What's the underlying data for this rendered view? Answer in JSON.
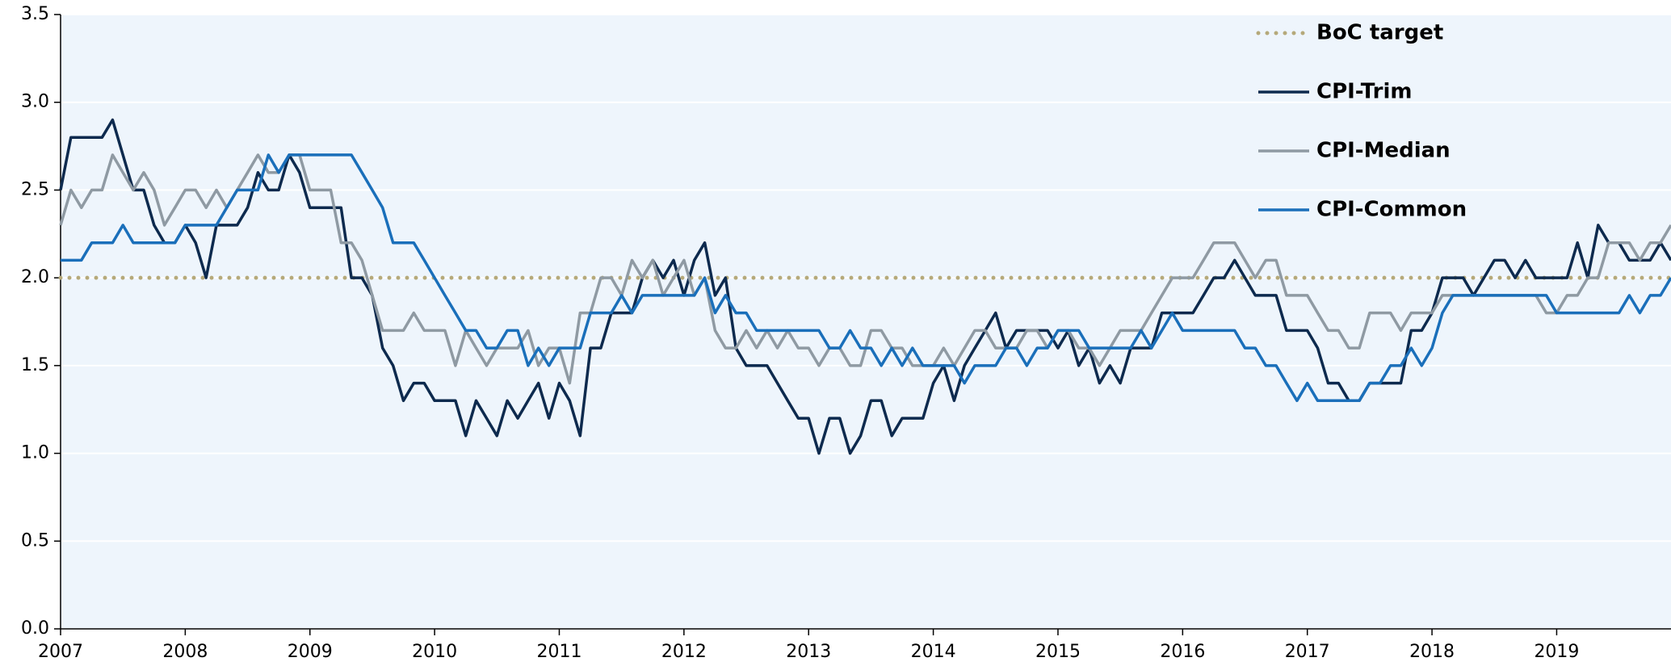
{
  "chart_data": {
    "type": "line",
    "x": [
      2007,
      2007.083,
      2007.167,
      2007.25,
      2007.333,
      2007.417,
      2007.5,
      2007.583,
      2007.667,
      2007.75,
      2007.833,
      2007.917,
      2008,
      2008.083,
      2008.167,
      2008.25,
      2008.333,
      2008.417,
      2008.5,
      2008.583,
      2008.667,
      2008.75,
      2008.833,
      2008.917,
      2009,
      2009.083,
      2009.167,
      2009.25,
      2009.333,
      2009.417,
      2009.5,
      2009.583,
      2009.667,
      2009.75,
      2009.833,
      2009.917,
      2010,
      2010.083,
      2010.167,
      2010.25,
      2010.333,
      2010.417,
      2010.5,
      2010.583,
      2010.667,
      2010.75,
      2010.833,
      2010.917,
      2011,
      2011.083,
      2011.167,
      2011.25,
      2011.333,
      2011.417,
      2011.5,
      2011.583,
      2011.667,
      2011.75,
      2011.833,
      2011.917,
      2012,
      2012.083,
      2012.167,
      2012.25,
      2012.333,
      2012.417,
      2012.5,
      2012.583,
      2012.667,
      2012.75,
      2012.833,
      2012.917,
      2013,
      2013.083,
      2013.167,
      2013.25,
      2013.333,
      2013.417,
      2013.5,
      2013.583,
      2013.667,
      2013.75,
      2013.833,
      2013.917,
      2014,
      2014.083,
      2014.167,
      2014.25,
      2014.333,
      2014.417,
      2014.5,
      2014.583,
      2014.667,
      2014.75,
      2014.833,
      2014.917,
      2015,
      2015.083,
      2015.167,
      2015.25,
      2015.333,
      2015.417,
      2015.5,
      2015.583,
      2015.667,
      2015.75,
      2015.833,
      2015.917,
      2016,
      2016.083,
      2016.167,
      2016.25,
      2016.333,
      2016.417,
      2016.5,
      2016.583,
      2016.667,
      2016.75,
      2016.833,
      2016.917,
      2017,
      2017.083,
      2017.167,
      2017.25,
      2017.333,
      2017.417,
      2017.5,
      2017.583,
      2017.667,
      2017.75,
      2017.833,
      2017.917,
      2018,
      2018.083,
      2018.167,
      2018.25,
      2018.333,
      2018.417,
      2018.5,
      2018.583,
      2018.667,
      2018.75,
      2018.833,
      2018.917,
      2019,
      2019.083,
      2019.167,
      2019.25,
      2019.333,
      2019.417,
      2019.5,
      2019.583,
      2019.667,
      2019.75,
      2019.833,
      2019.917
    ],
    "series": [
      {
        "name": "CPI-Trim",
        "color": "#0d2a4e",
        "values": [
          2.5,
          2.8,
          2.8,
          2.8,
          2.8,
          2.9,
          2.7,
          2.5,
          2.5,
          2.3,
          2.2,
          2.2,
          2.3,
          2.2,
          2.0,
          2.3,
          2.3,
          2.3,
          2.4,
          2.6,
          2.5,
          2.5,
          2.7,
          2.6,
          2.4,
          2.4,
          2.4,
          2.4,
          2.0,
          2.0,
          1.9,
          1.6,
          1.5,
          1.3,
          1.4,
          1.4,
          1.3,
          1.3,
          1.3,
          1.1,
          1.3,
          1.2,
          1.1,
          1.3,
          1.2,
          1.3,
          1.4,
          1.2,
          1.4,
          1.3,
          1.1,
          1.6,
          1.6,
          1.8,
          1.8,
          1.8,
          2.0,
          2.1,
          2.0,
          2.1,
          1.9,
          2.1,
          2.2,
          1.9,
          2.0,
          1.6,
          1.5,
          1.5,
          1.5,
          1.4,
          1.3,
          1.2,
          1.2,
          1.0,
          1.2,
          1.2,
          1.0,
          1.1,
          1.3,
          1.3,
          1.1,
          1.2,
          1.2,
          1.2,
          1.4,
          1.5,
          1.3,
          1.5,
          1.6,
          1.7,
          1.8,
          1.6,
          1.7,
          1.7,
          1.7,
          1.7,
          1.6,
          1.7,
          1.5,
          1.6,
          1.4,
          1.5,
          1.4,
          1.6,
          1.6,
          1.6,
          1.8,
          1.8,
          1.8,
          1.8,
          1.9,
          2.0,
          2.0,
          2.1,
          2.0,
          1.9,
          1.9,
          1.9,
          1.7,
          1.7,
          1.7,
          1.6,
          1.4,
          1.4,
          1.3,
          1.3,
          1.4,
          1.4,
          1.4,
          1.4,
          1.7,
          1.7,
          1.8,
          2.0,
          2.0,
          2.0,
          1.9,
          2.0,
          2.1,
          2.1,
          2.0,
          2.1,
          2.0,
          2.0,
          2.0,
          2.0,
          2.2,
          2.0,
          2.3,
          2.2,
          2.2,
          2.1,
          2.1,
          2.1,
          2.2,
          2.1
        ]
      },
      {
        "name": "CPI-Median",
        "color": "#8f9aa3",
        "values": [
          2.3,
          2.5,
          2.4,
          2.5,
          2.5,
          2.7,
          2.6,
          2.5,
          2.6,
          2.5,
          2.3,
          2.4,
          2.5,
          2.5,
          2.4,
          2.5,
          2.4,
          2.5,
          2.6,
          2.7,
          2.6,
          2.6,
          2.7,
          2.7,
          2.5,
          2.5,
          2.5,
          2.2,
          2.2,
          2.1,
          1.9,
          1.7,
          1.7,
          1.7,
          1.8,
          1.7,
          1.7,
          1.7,
          1.5,
          1.7,
          1.6,
          1.5,
          1.6,
          1.6,
          1.6,
          1.7,
          1.5,
          1.6,
          1.6,
          1.4,
          1.8,
          1.8,
          2.0,
          2.0,
          1.9,
          2.1,
          2.0,
          2.1,
          1.9,
          2.0,
          2.1,
          1.9,
          2.0,
          1.7,
          1.6,
          1.6,
          1.7,
          1.6,
          1.7,
          1.6,
          1.7,
          1.6,
          1.6,
          1.5,
          1.6,
          1.6,
          1.5,
          1.5,
          1.7,
          1.7,
          1.6,
          1.6,
          1.5,
          1.5,
          1.5,
          1.6,
          1.5,
          1.6,
          1.7,
          1.7,
          1.6,
          1.6,
          1.6,
          1.7,
          1.7,
          1.6,
          1.7,
          1.7,
          1.6,
          1.6,
          1.5,
          1.6,
          1.7,
          1.7,
          1.7,
          1.8,
          1.9,
          2.0,
          2.0,
          2.0,
          2.1,
          2.2,
          2.2,
          2.2,
          2.1,
          2.0,
          2.1,
          2.1,
          1.9,
          1.9,
          1.9,
          1.8,
          1.7,
          1.7,
          1.6,
          1.6,
          1.8,
          1.8,
          1.8,
          1.7,
          1.8,
          1.8,
          1.8,
          1.9,
          1.9,
          1.9,
          1.9,
          1.9,
          1.9,
          1.9,
          1.9,
          1.9,
          1.9,
          1.8,
          1.8,
          1.9,
          1.9,
          2.0,
          2.0,
          2.2,
          2.2,
          2.2,
          2.1,
          2.2,
          2.2,
          2.3
        ]
      },
      {
        "name": "CPI-Common",
        "color": "#1a6fba",
        "values": [
          2.1,
          2.1,
          2.1,
          2.2,
          2.2,
          2.2,
          2.3,
          2.2,
          2.2,
          2.2,
          2.2,
          2.2,
          2.3,
          2.3,
          2.3,
          2.3,
          2.4,
          2.5,
          2.5,
          2.5,
          2.7,
          2.6,
          2.7,
          2.7,
          2.7,
          2.7,
          2.7,
          2.7,
          2.7,
          2.6,
          2.5,
          2.4,
          2.2,
          2.2,
          2.2,
          2.1,
          2.0,
          1.9,
          1.8,
          1.7,
          1.7,
          1.6,
          1.6,
          1.7,
          1.7,
          1.5,
          1.6,
          1.5,
          1.6,
          1.6,
          1.6,
          1.8,
          1.8,
          1.8,
          1.9,
          1.8,
          1.9,
          1.9,
          1.9,
          1.9,
          1.9,
          1.9,
          2.0,
          1.8,
          1.9,
          1.8,
          1.8,
          1.7,
          1.7,
          1.7,
          1.7,
          1.7,
          1.7,
          1.7,
          1.6,
          1.6,
          1.7,
          1.6,
          1.6,
          1.5,
          1.6,
          1.5,
          1.6,
          1.5,
          1.5,
          1.5,
          1.5,
          1.4,
          1.5,
          1.5,
          1.5,
          1.6,
          1.6,
          1.5,
          1.6,
          1.6,
          1.7,
          1.7,
          1.7,
          1.6,
          1.6,
          1.6,
          1.6,
          1.6,
          1.7,
          1.6,
          1.7,
          1.8,
          1.7,
          1.7,
          1.7,
          1.7,
          1.7,
          1.7,
          1.6,
          1.6,
          1.5,
          1.5,
          1.4,
          1.3,
          1.4,
          1.3,
          1.3,
          1.3,
          1.3,
          1.3,
          1.4,
          1.4,
          1.5,
          1.5,
          1.6,
          1.5,
          1.6,
          1.8,
          1.9,
          1.9,
          1.9,
          1.9,
          1.9,
          1.9,
          1.9,
          1.9,
          1.9,
          1.9,
          1.8,
          1.8,
          1.8,
          1.8,
          1.8,
          1.8,
          1.8,
          1.9,
          1.8,
          1.9,
          1.9,
          2.0
        ]
      }
    ],
    "target": {
      "name": "BoC target",
      "value": 2,
      "color": "#b5a97a"
    },
    "xlim": [
      2007,
      2019.917
    ],
    "xticks": [
      2007,
      2008,
      2009,
      2010,
      2011,
      2012,
      2013,
      2014,
      2015,
      2016,
      2017,
      2018,
      2019
    ],
    "ylim": [
      0,
      3.5
    ],
    "yticks": [
      {
        "value": 0,
        "label": "0.0"
      },
      {
        "value": 0.5,
        "label": "0.5"
      },
      {
        "value": 1,
        "label": "1.0"
      },
      {
        "value": 1.5,
        "label": "1.5"
      },
      {
        "value": 2,
        "label": "2.0"
      },
      {
        "value": 2.5,
        "label": "2.5"
      },
      {
        "value": 3,
        "label": "3.0"
      },
      {
        "value": 3.5,
        "label": "3.5"
      }
    ],
    "grid": true,
    "legend": "upper right"
  }
}
